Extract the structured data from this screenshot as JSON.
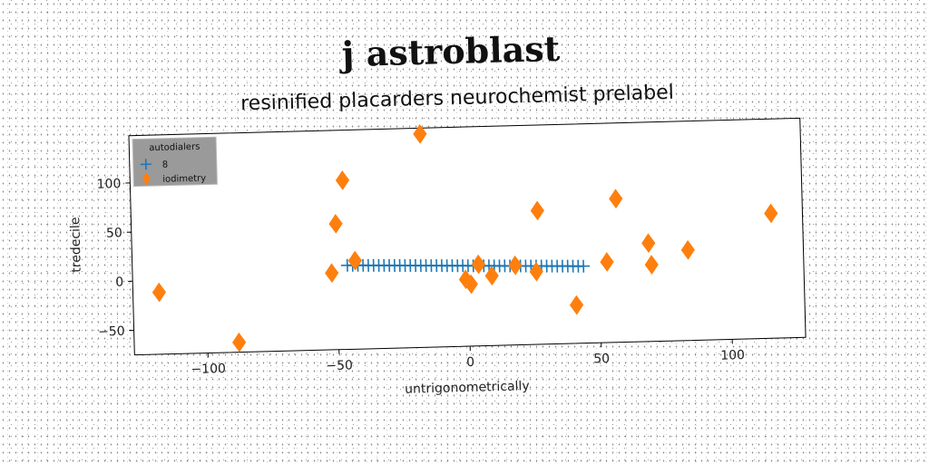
{
  "chart_data": {
    "type": "scatter",
    "title": "j astroblast",
    "subtitle": "resinified placarders neurochemist prelabel",
    "xlabel": "untrigonometrically",
    "ylabel": "tredecile",
    "xlim": [
      -128,
      128
    ],
    "ylim": [
      -75,
      148
    ],
    "xticks": [
      -100,
      -50,
      0,
      50,
      100
    ],
    "yticks": [
      -50,
      0,
      50,
      100
    ],
    "grid": false,
    "legend": {
      "title": "autodialers",
      "position": "top-left"
    },
    "series": [
      {
        "name": "8",
        "marker": "plus",
        "color": "#1f77b4",
        "x": [
          -46,
          -44,
          -42,
          -40,
          -38,
          -36,
          -34,
          -32,
          -30,
          -28,
          -26,
          -24,
          -22,
          -20,
          -18,
          -16,
          -14,
          -12,
          -10,
          -8,
          -6,
          -4,
          -2,
          0,
          2,
          4,
          6,
          8,
          10,
          12,
          14,
          16,
          18,
          20,
          22,
          24,
          26,
          28,
          30,
          32,
          34,
          36,
          38,
          40,
          42,
          44
        ],
        "y": [
          10.5,
          10.3,
          10.2,
          10.0,
          9.8,
          9.7,
          9.5,
          9.4,
          9.2,
          9.0,
          8.9,
          8.7,
          8.6,
          8.4,
          8.2,
          8.1,
          7.9,
          7.8,
          7.6,
          7.4,
          7.3,
          7.1,
          7.0,
          6.8,
          6.6,
          6.5,
          6.3,
          6.2,
          6.0,
          5.8,
          5.7,
          5.5,
          5.4,
          5.2,
          5.0,
          4.9,
          4.7,
          4.6,
          4.4,
          4.2,
          4.1,
          3.9,
          3.8,
          3.6,
          3.4,
          3.3
        ]
      },
      {
        "name": "iodimetry",
        "marker": "thin_diamond",
        "color": "#ff7f0e",
        "x": [
          -118,
          -88,
          -52,
          -50,
          -47,
          -43,
          -17,
          -1,
          1,
          4,
          9,
          18,
          26,
          27,
          41,
          53,
          57,
          69,
          70,
          84,
          116
        ],
        "y": [
          -12,
          -65,
          3,
          53,
          97,
          15,
          142,
          -7,
          -12,
          8,
          -4,
          6,
          -1,
          61,
          -36,
          7,
          71,
          25,
          3,
          17,
          52
        ]
      }
    ]
  }
}
